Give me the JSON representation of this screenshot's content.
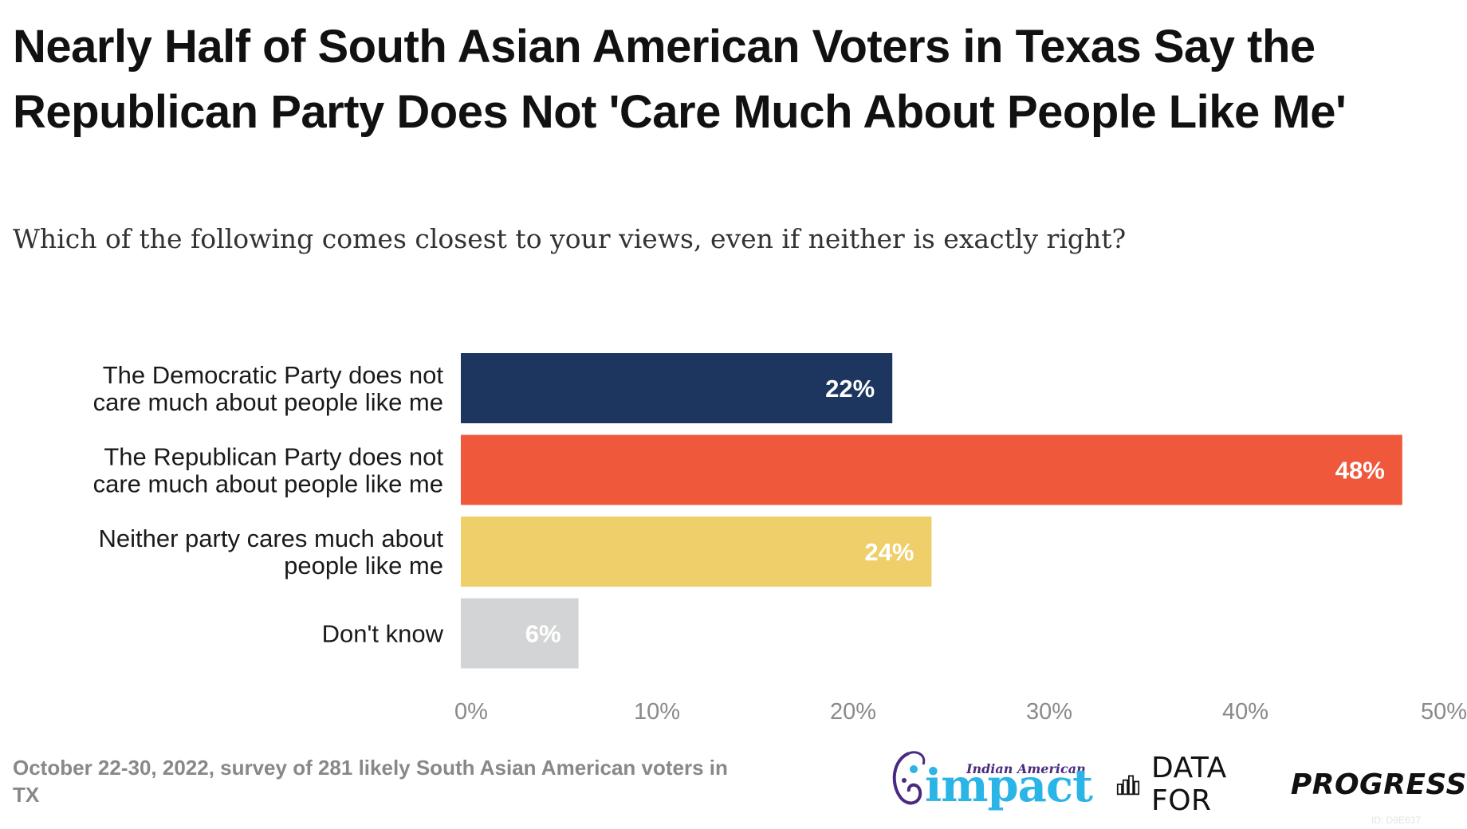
{
  "title": "Nearly Half of South Asian American Voters in Texas Say the Republican Party Does Not 'Care Much About People Like Me'",
  "subtitle": "Which of the following comes closest to your views, even if neither is exactly right?",
  "footer_note": "October 22-30, 2022, survey of 281 likely South Asian American voters in TX",
  "logos": {
    "impact_small": "Indian American",
    "impact_big": "impact",
    "dfp_prefix": "DATA FOR",
    "dfp_emphasis": "PROGRESS"
  },
  "chart_id": "ID: D9E637",
  "chart_data": {
    "type": "bar",
    "orientation": "horizontal",
    "categories": [
      [
        "The Democratic Party does not",
        "care much about people like me"
      ],
      [
        "The Republican Party does not",
        "care much about people like me"
      ],
      [
        "Neither party cares much about",
        "people like me"
      ],
      [
        "Don't know"
      ]
    ],
    "values": [
      22,
      48,
      24,
      6
    ],
    "value_labels": [
      "22%",
      "48%",
      "24%",
      "6%"
    ],
    "colors": [
      "#1c365f",
      "#f0583c",
      "#efcf6a",
      "#d3d4d6"
    ],
    "xlim": [
      0,
      50
    ],
    "xticks": [
      0,
      10,
      20,
      30,
      40,
      50
    ],
    "xtick_labels": [
      "0%",
      "10%",
      "20%",
      "30%",
      "40%",
      "50%"
    ],
    "grid": false,
    "legend": "none"
  }
}
